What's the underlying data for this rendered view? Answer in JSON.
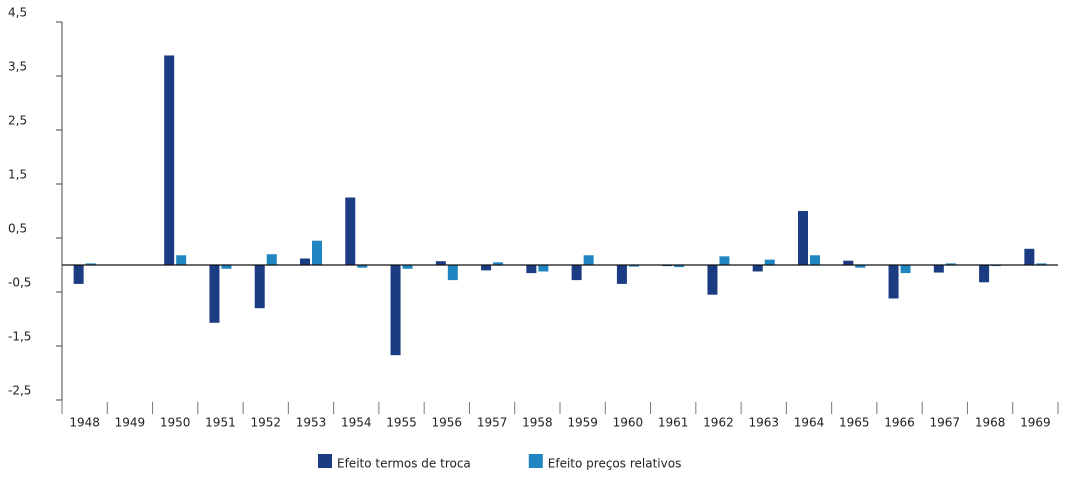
{
  "chart_data": {
    "type": "bar",
    "categories": [
      "1948",
      "1949",
      "1950",
      "1951",
      "1952",
      "1953",
      "1954",
      "1955",
      "1956",
      "1957",
      "1958",
      "1959",
      "1960",
      "1961",
      "1962",
      "1963",
      "1964",
      "1965",
      "1966",
      "1967",
      "1968",
      "1969"
    ],
    "series": [
      {
        "name": "Efeito termos de troca",
        "color": "#1b3b82",
        "values": [
          -0.35,
          0,
          3.88,
          -1.07,
          -0.8,
          0.12,
          1.25,
          -1.67,
          0.07,
          -0.1,
          -0.15,
          -0.28,
          -0.35,
          -0.02,
          -0.55,
          -0.12,
          1.0,
          0.08,
          -0.62,
          -0.14,
          -0.32,
          0.3
        ]
      },
      {
        "name": "Efeito preços relativos",
        "color": "#1f86c1",
        "values": [
          0.03,
          0,
          0.18,
          -0.07,
          0.2,
          0.45,
          -0.05,
          -0.07,
          -0.28,
          0.05,
          -0.12,
          0.18,
          -0.03,
          -0.04,
          0.16,
          0.1,
          0.18,
          -0.05,
          -0.15,
          0.03,
          -0.02,
          0.03
        ]
      }
    ],
    "ylim": [
      -2.5,
      4.5
    ],
    "yticks": [
      {
        "value": -2.5,
        "label": "-2,5"
      },
      {
        "value": -1.5,
        "label": "-1,5"
      },
      {
        "value": -0.5,
        "label": "-0,5"
      },
      {
        "value": 0.5,
        "label": "0,5"
      },
      {
        "value": 1.5,
        "label": "1,5"
      },
      {
        "value": 2.5,
        "label": "2,5"
      },
      {
        "value": 3.5,
        "label": "3,5"
      },
      {
        "value": 4.5,
        "label": "4,5"
      }
    ],
    "grid": false
  }
}
